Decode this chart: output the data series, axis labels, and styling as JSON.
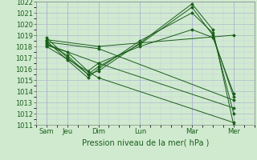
{
  "title": "Pression niveau de la mer( hPa )",
  "bg_color": "#d0ead0",
  "grid_major_color": "#b0b8d0",
  "grid_minor_color": "#c8cce0",
  "line_color": "#1a5e1a",
  "ylim": [
    1011,
    1022
  ],
  "yticks": [
    1011,
    1012,
    1013,
    1014,
    1015,
    1016,
    1017,
    1018,
    1019,
    1020,
    1021,
    1022
  ],
  "xlabels": [
    "Sam",
    "Jeu",
    "Dim",
    "Lun",
    "Mar",
    "Mer"
  ],
  "xpositions": [
    0.5,
    1.5,
    3.0,
    5.0,
    7.5,
    9.5
  ],
  "xlim": [
    0,
    10.5
  ],
  "series": [
    {
      "x": [
        0.5,
        1.5,
        2.5,
        3.0,
        5.0,
        7.5,
        8.5,
        9.5
      ],
      "y": [
        1018.8,
        1017.0,
        1015.5,
        1015.8,
        1018.3,
        1021.8,
        1019.5,
        1011.0
      ]
    },
    {
      "x": [
        0.5,
        1.5,
        2.5,
        3.0,
        5.0,
        7.5,
        8.5,
        9.5
      ],
      "y": [
        1018.5,
        1016.8,
        1015.2,
        1016.0,
        1018.5,
        1021.0,
        1019.2,
        1012.0
      ]
    },
    {
      "x": [
        0.5,
        1.5,
        2.5,
        3.0,
        5.0,
        7.5,
        8.5,
        9.5
      ],
      "y": [
        1018.3,
        1017.2,
        1015.5,
        1016.2,
        1018.2,
        1021.5,
        1019.0,
        1013.5
      ]
    },
    {
      "x": [
        0.5,
        1.5,
        2.5,
        3.0,
        5.0,
        7.5,
        8.5,
        9.5
      ],
      "y": [
        1018.1,
        1017.5,
        1015.8,
        1016.5,
        1018.0,
        1019.5,
        1018.8,
        1013.8
      ]
    },
    {
      "x": [
        0.5,
        3.0,
        9.5
      ],
      "y": [
        1018.6,
        1018.0,
        1019.0
      ]
    },
    {
      "x": [
        0.5,
        3.0,
        9.5
      ],
      "y": [
        1018.4,
        1017.8,
        1013.2
      ]
    },
    {
      "x": [
        0.5,
        3.0,
        9.5
      ],
      "y": [
        1018.2,
        1016.5,
        1012.5
      ]
    },
    {
      "x": [
        0.5,
        3.0,
        9.5
      ],
      "y": [
        1018.0,
        1015.2,
        1011.2
      ]
    }
  ],
  "font_size": 6,
  "label_fontsize": 7
}
